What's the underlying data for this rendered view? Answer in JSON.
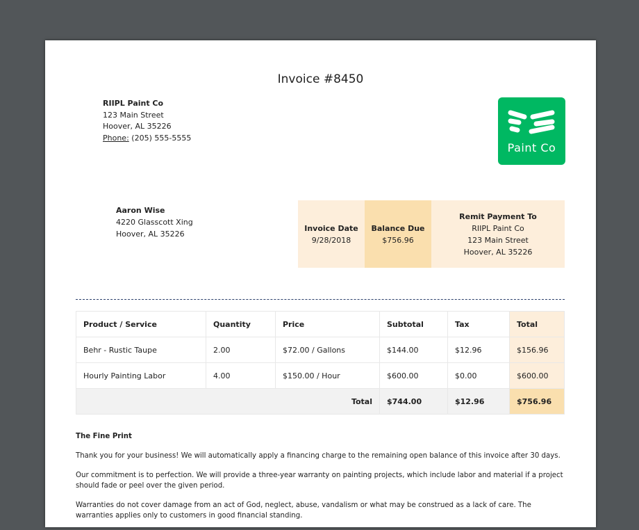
{
  "invoice": {
    "title": "Invoice #8450"
  },
  "company": {
    "name": "RIIPL Paint Co",
    "street": "123 Main Street",
    "city": "Hoover, AL 35226",
    "phone_label": "Phone:",
    "phone": "(205) 555-5555",
    "logo_text": "Paint Co",
    "brand_color": "#00b862"
  },
  "customer": {
    "name": "Aaron Wise",
    "street": "4220 Glasscott Xing",
    "city": "Hoover, AL 35226"
  },
  "summary": {
    "date_label": "Invoice Date",
    "date": "9/28/2018",
    "balance_label": "Balance Due",
    "balance": "$756.96",
    "remit_label": "Remit Payment To",
    "remit_name": "RIIPL Paint Co",
    "remit_street": "123 Main Street",
    "remit_city": "Hoover, AL 35226"
  },
  "table": {
    "headers": [
      "Product / Service",
      "Quantity",
      "Price",
      "Subtotal",
      "Tax",
      "Total"
    ],
    "rows": [
      [
        "Behr - Rustic Taupe",
        "2.00",
        "$72.00 / Gallons",
        "$144.00",
        "$12.96",
        "$156.96"
      ],
      [
        "Hourly Painting Labor",
        "4.00",
        "$150.00 / Hour",
        "$600.00",
        "$0.00",
        "$600.00"
      ]
    ],
    "total_label": "Total",
    "total_subtotal": "$744.00",
    "total_tax": "$12.96",
    "total_total": "$756.96"
  },
  "fine_print": {
    "heading": "The Fine Print",
    "paragraphs": [
      "Thank you for your business!  We will automatically apply a financing charge to the remaining open balance of this invoice after 30 days.",
      "Our commitment is to perfection.  We will provide a three-year warranty on painting projects, which include labor and material if a project should fade or peel over the given period.",
      "Warranties do not cover damage from an act of God, neglect, abuse, vandalism or what may be construed as a lack of care. The warranties applies only to customers in good financial standing."
    ]
  }
}
